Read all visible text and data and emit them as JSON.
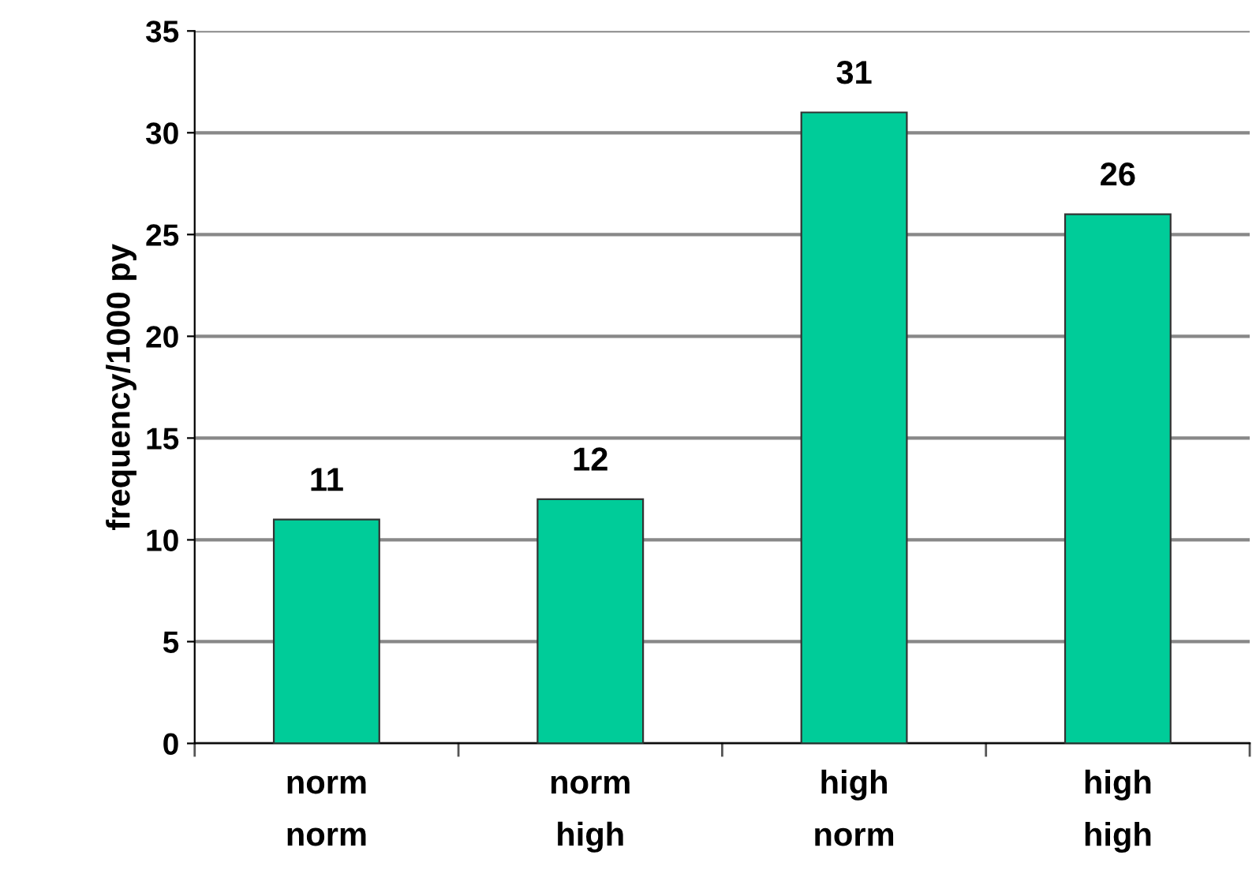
{
  "chart_data": {
    "type": "bar",
    "ylabel": "frequency/1000 py",
    "categories": [
      "norm\nnorm",
      "norm\nhigh",
      "high\nnorm",
      "high\nhigh"
    ],
    "values": [
      11,
      12,
      31,
      26
    ],
    "color": "#00cc99",
    "ylim": [
      0,
      35
    ],
    "yticks": [
      0,
      5,
      10,
      15,
      20,
      25,
      30,
      35
    ],
    "grid": "y",
    "data_labels": true
  }
}
